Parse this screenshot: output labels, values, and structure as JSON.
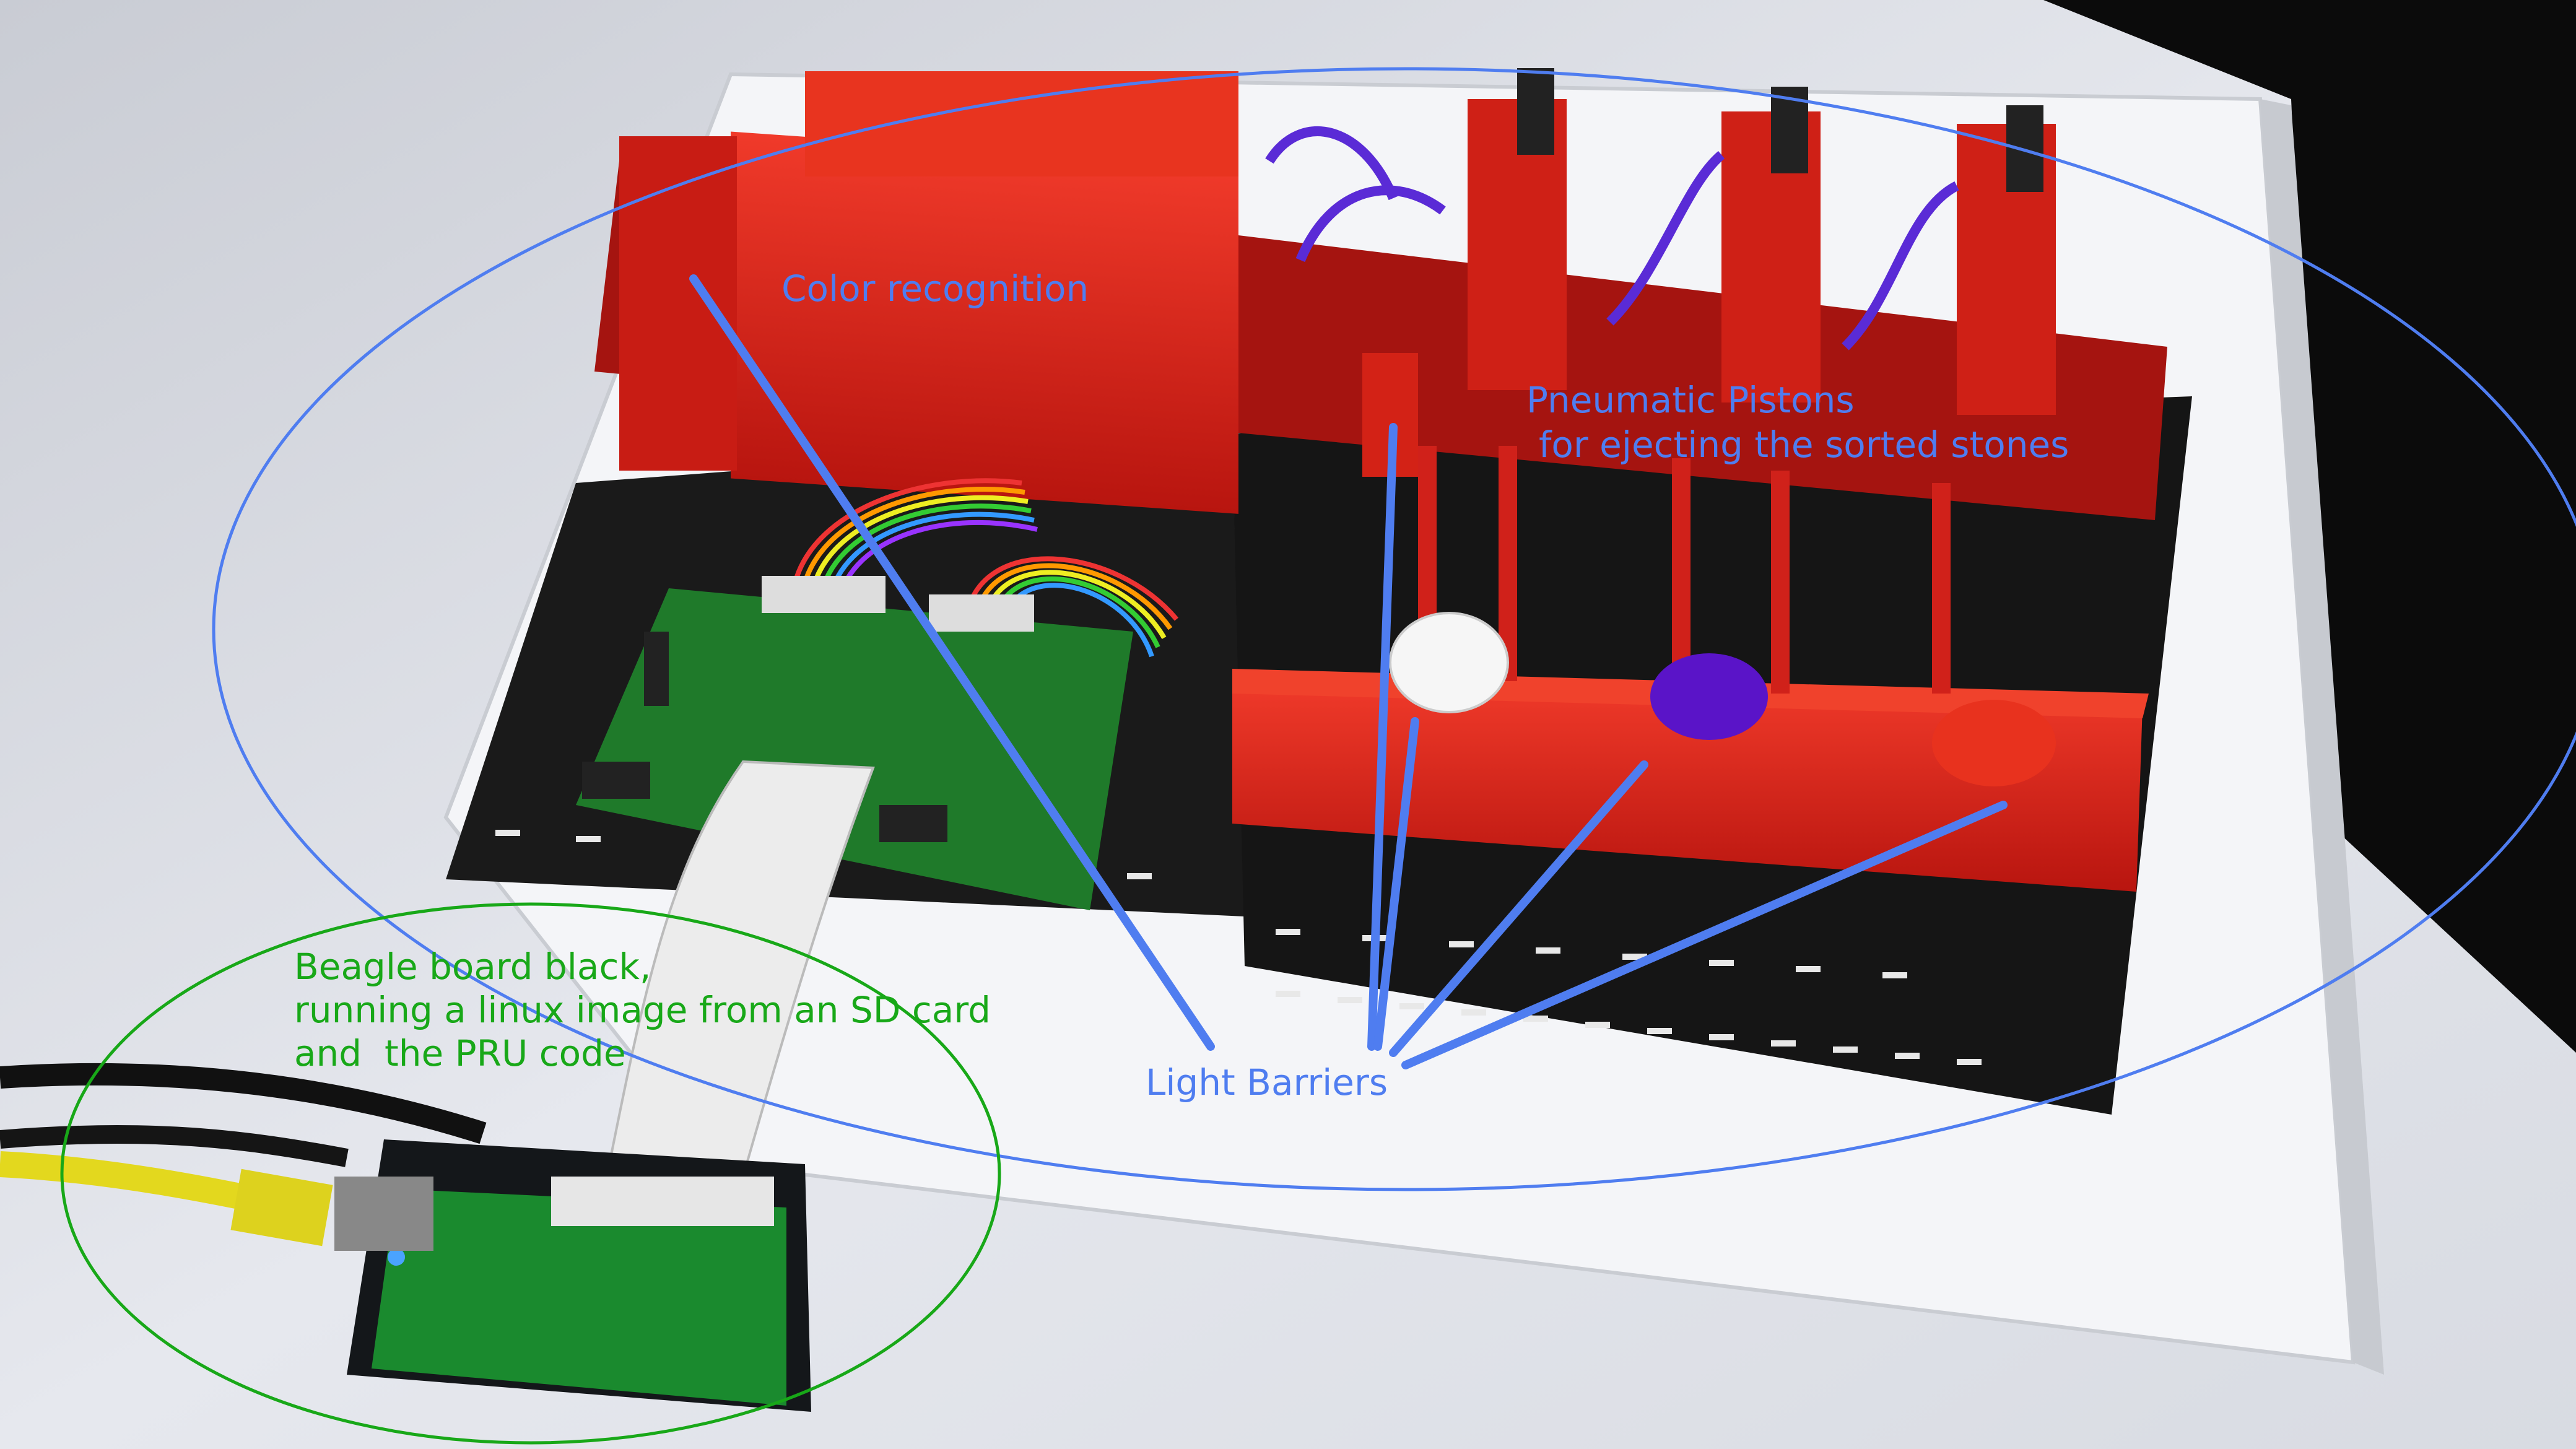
{
  "annotations": {
    "color_recognition": "Color recognition",
    "pneumatic_line1": "Pneumatic Pistons",
    "pneumatic_line2": "for ejecting the sorted stones",
    "light_barriers": "Light Barriers",
    "beagle_line1": "Beagle board black,",
    "beagle_line2": "running a linux image from an SD card",
    "beagle_line3": "and  the PRU code"
  },
  "colors": {
    "annotation_blue": "#4f7df0",
    "annotation_green": "#18a818",
    "fischertechnik_red": "#d82020",
    "baseplate_black": "#1a1a1a",
    "pcb_green": "#1f7a2a",
    "table_white": "#e9ebef"
  },
  "objects": [
    "color-sorting-machine",
    "controller-pcb",
    "beaglebone-black",
    "ribbon-cable",
    "ethernet-cable",
    "power-cable",
    "white-stone",
    "purple-stone",
    "red-stone"
  ]
}
